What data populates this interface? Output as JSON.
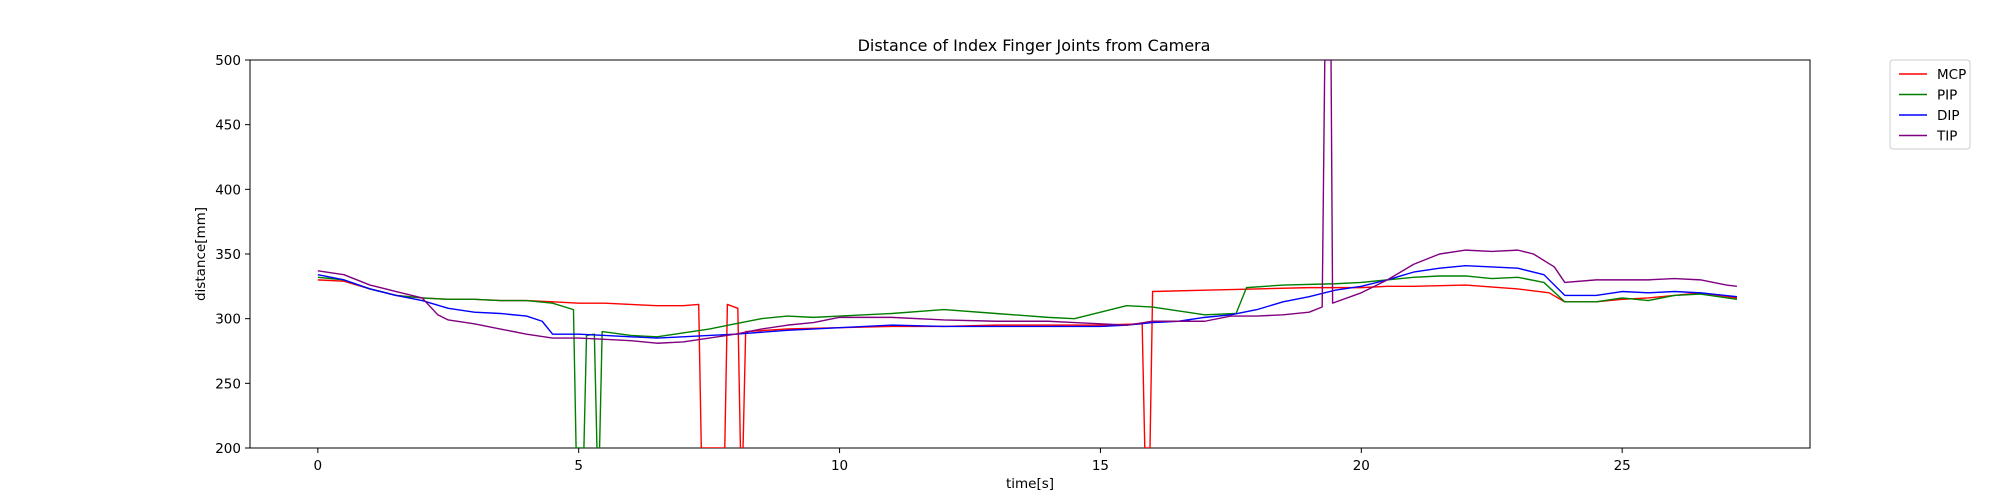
{
  "chart_data": {
    "type": "line",
    "title": "Distance of Index Finger Joints from Camera",
    "xlabel": "time[s]",
    "ylabel": "distance[mm]",
    "xlim": [
      -1.3,
      28.6
    ],
    "ylim": [
      200,
      500
    ],
    "xticks": [
      0,
      5,
      10,
      15,
      20,
      25
    ],
    "yticks": [
      200,
      250,
      300,
      350,
      400,
      450,
      500
    ],
    "grid": false,
    "legend_position": "outside-top-right",
    "series": [
      {
        "name": "MCP",
        "color": "#ff0000",
        "points": [
          [
            0,
            330
          ],
          [
            0.5,
            329
          ],
          [
            1,
            323
          ],
          [
            1.5,
            318
          ],
          [
            2,
            316
          ],
          [
            2.5,
            315
          ],
          [
            3,
            315
          ],
          [
            3.5,
            314
          ],
          [
            4,
            314
          ],
          [
            4.5,
            313
          ],
          [
            5,
            312
          ],
          [
            5.5,
            312
          ],
          [
            6,
            311
          ],
          [
            6.5,
            310
          ],
          [
            7,
            310
          ],
          [
            7.3,
            311
          ],
          [
            7.35,
            200
          ],
          [
            7.8,
            200
          ],
          [
            7.85,
            311
          ],
          [
            8.05,
            308
          ],
          [
            8.1,
            200
          ],
          [
            8.15,
            200
          ],
          [
            8.2,
            290
          ],
          [
            9,
            292
          ],
          [
            10,
            293
          ],
          [
            11,
            294
          ],
          [
            12,
            294
          ],
          [
            13,
            295
          ],
          [
            14,
            295
          ],
          [
            15,
            295
          ],
          [
            15.8,
            296
          ],
          [
            15.85,
            200
          ],
          [
            15.95,
            200
          ],
          [
            16,
            321
          ],
          [
            17,
            322
          ],
          [
            18,
            323
          ],
          [
            19,
            324
          ],
          [
            20,
            324
          ],
          [
            20.5,
            325
          ],
          [
            21,
            325
          ],
          [
            22,
            326
          ],
          [
            23,
            323
          ],
          [
            23.6,
            320
          ],
          [
            23.9,
            313
          ],
          [
            24.5,
            313
          ],
          [
            25,
            315
          ],
          [
            25.5,
            316
          ],
          [
            26,
            318
          ],
          [
            26.5,
            320
          ],
          [
            27.2,
            316
          ]
        ]
      },
      {
        "name": "PIP",
        "color": "#008000",
        "points": [
          [
            0,
            332
          ],
          [
            0.5,
            330
          ],
          [
            1,
            323
          ],
          [
            1.5,
            318
          ],
          [
            2,
            316
          ],
          [
            2.5,
            315
          ],
          [
            3,
            315
          ],
          [
            3.5,
            314
          ],
          [
            4,
            314
          ],
          [
            4.5,
            312
          ],
          [
            4.9,
            307
          ],
          [
            4.95,
            200
          ],
          [
            5.1,
            200
          ],
          [
            5.15,
            287
          ],
          [
            5.3,
            288
          ],
          [
            5.35,
            200
          ],
          [
            5.4,
            200
          ],
          [
            5.45,
            290
          ],
          [
            6,
            287
          ],
          [
            6.5,
            286
          ],
          [
            7,
            289
          ],
          [
            7.5,
            292
          ],
          [
            8,
            296
          ],
          [
            8.5,
            300
          ],
          [
            9,
            302
          ],
          [
            9.5,
            301
          ],
          [
            10,
            302
          ],
          [
            11,
            304
          ],
          [
            12,
            307
          ],
          [
            13,
            304
          ],
          [
            14,
            301
          ],
          [
            14.5,
            300
          ],
          [
            15,
            305
          ],
          [
            15.5,
            310
          ],
          [
            16,
            309
          ],
          [
            16.5,
            306
          ],
          [
            17,
            303
          ],
          [
            17.6,
            304
          ],
          [
            17.8,
            324
          ],
          [
            18.5,
            326
          ],
          [
            19.5,
            327
          ],
          [
            20,
            328
          ],
          [
            20.5,
            330
          ],
          [
            21,
            332
          ],
          [
            21.5,
            333
          ],
          [
            22,
            333
          ],
          [
            22.5,
            331
          ],
          [
            23,
            332
          ],
          [
            23.5,
            328
          ],
          [
            23.9,
            313
          ],
          [
            24.5,
            313
          ],
          [
            25,
            316
          ],
          [
            25.5,
            314
          ],
          [
            26,
            318
          ],
          [
            26.5,
            319
          ],
          [
            27.2,
            315
          ]
        ]
      },
      {
        "name": "DIP",
        "color": "#0000ff",
        "points": [
          [
            0,
            334
          ],
          [
            0.5,
            330
          ],
          [
            1,
            323
          ],
          [
            1.5,
            318
          ],
          [
            2,
            314
          ],
          [
            2.5,
            308
          ],
          [
            3,
            305
          ],
          [
            3.5,
            304
          ],
          [
            4,
            302
          ],
          [
            4.3,
            298
          ],
          [
            4.5,
            288
          ],
          [
            5,
            288
          ],
          [
            5.5,
            287
          ],
          [
            6,
            286
          ],
          [
            6.5,
            285
          ],
          [
            7,
            286
          ],
          [
            7.5,
            287
          ],
          [
            8,
            288
          ],
          [
            9,
            291
          ],
          [
            10,
            293
          ],
          [
            11,
            295
          ],
          [
            12,
            294
          ],
          [
            13,
            294
          ],
          [
            14,
            294
          ],
          [
            15,
            294
          ],
          [
            15.5,
            295
          ],
          [
            16,
            297
          ],
          [
            16.5,
            298
          ],
          [
            17,
            301
          ],
          [
            17.5,
            303
          ],
          [
            18,
            307
          ],
          [
            18.5,
            313
          ],
          [
            19,
            317
          ],
          [
            19.5,
            322
          ],
          [
            20,
            325
          ],
          [
            20.5,
            330
          ],
          [
            21,
            336
          ],
          [
            21.5,
            339
          ],
          [
            22,
            341
          ],
          [
            22.5,
            340
          ],
          [
            23,
            339
          ],
          [
            23.5,
            334
          ],
          [
            23.9,
            318
          ],
          [
            24.5,
            318
          ],
          [
            25,
            321
          ],
          [
            25.5,
            320
          ],
          [
            26,
            321
          ],
          [
            26.5,
            320
          ],
          [
            27.2,
            317
          ]
        ]
      },
      {
        "name": "TIP",
        "color": "#800080",
        "points": [
          [
            0,
            337
          ],
          [
            0.5,
            334
          ],
          [
            1,
            326
          ],
          [
            1.5,
            321
          ],
          [
            2,
            316
          ],
          [
            2.3,
            303
          ],
          [
            2.5,
            299
          ],
          [
            3,
            296
          ],
          [
            3.5,
            292
          ],
          [
            4,
            288
          ],
          [
            4.5,
            285
          ],
          [
            5,
            285
          ],
          [
            5.5,
            284
          ],
          [
            6,
            283
          ],
          [
            6.5,
            281
          ],
          [
            7,
            282
          ],
          [
            7.5,
            285
          ],
          [
            8,
            288
          ],
          [
            8.5,
            292
          ],
          [
            9,
            295
          ],
          [
            9.5,
            297
          ],
          [
            10,
            301
          ],
          [
            11,
            301
          ],
          [
            12,
            299
          ],
          [
            13,
            298
          ],
          [
            14,
            298
          ],
          [
            14.5,
            297
          ],
          [
            15,
            296
          ],
          [
            15.5,
            295
          ],
          [
            16,
            298
          ],
          [
            17,
            298
          ],
          [
            17.5,
            302
          ],
          [
            18,
            302
          ],
          [
            18.5,
            303
          ],
          [
            19,
            305
          ],
          [
            19.25,
            309
          ],
          [
            19.3,
            500
          ],
          [
            19.42,
            500
          ],
          [
            19.45,
            312
          ],
          [
            20,
            320
          ],
          [
            20.5,
            330
          ],
          [
            21,
            342
          ],
          [
            21.5,
            350
          ],
          [
            22,
            353
          ],
          [
            22.5,
            352
          ],
          [
            23,
            353
          ],
          [
            23.3,
            350
          ],
          [
            23.7,
            340
          ],
          [
            23.9,
            328
          ],
          [
            24.5,
            330
          ],
          [
            25,
            330
          ],
          [
            25.5,
            330
          ],
          [
            26,
            331
          ],
          [
            26.5,
            330
          ],
          [
            27,
            326
          ],
          [
            27.2,
            325
          ]
        ]
      }
    ]
  }
}
